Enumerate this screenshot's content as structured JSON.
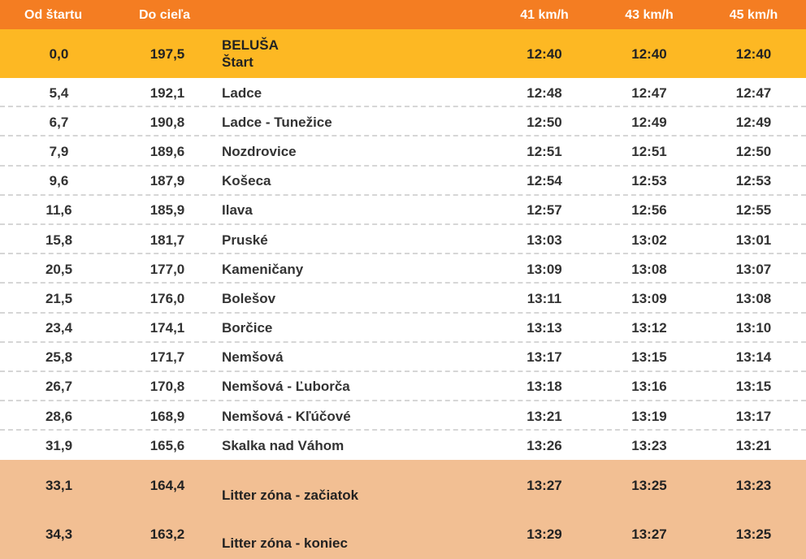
{
  "header": {
    "from_start": "Od štartu",
    "to_finish": "Do cieľa",
    "place": "",
    "speed1": "41 km/h",
    "speed2": "43 km/h",
    "speed3": "45 km/h"
  },
  "start_row": {
    "from": "0,0",
    "to": "197,5",
    "place_line1": "BELUŠA",
    "place_line2": "Štart",
    "t1": "12:40",
    "t2": "12:40",
    "t3": "12:40"
  },
  "rows": [
    {
      "from": "5,4",
      "to": "192,1",
      "place": "Ladce",
      "t1": "12:48",
      "t2": "12:47",
      "t3": "12:47"
    },
    {
      "from": "6,7",
      "to": "190,8",
      "place": "Ladce - Tunežice",
      "t1": "12:50",
      "t2": "12:49",
      "t3": "12:49"
    },
    {
      "from": "7,9",
      "to": "189,6",
      "place": "Nozdrovice",
      "t1": "12:51",
      "t2": "12:51",
      "t3": "12:50"
    },
    {
      "from": "9,6",
      "to": "187,9",
      "place": "Košeca",
      "t1": "12:54",
      "t2": "12:53",
      "t3": "12:53"
    },
    {
      "from": "11,6",
      "to": "185,9",
      "place": "Ilava",
      "t1": "12:57",
      "t2": "12:56",
      "t3": "12:55"
    },
    {
      "from": "15,8",
      "to": "181,7",
      "place": "Pruské",
      "t1": "13:03",
      "t2": "13:02",
      "t3": "13:01"
    },
    {
      "from": "20,5",
      "to": "177,0",
      "place": "Kameničany",
      "t1": "13:09",
      "t2": "13:08",
      "t3": "13:07"
    },
    {
      "from": "21,5",
      "to": "176,0",
      "place": "Bolešov",
      "t1": "13:11",
      "t2": "13:09",
      "t3": "13:08"
    },
    {
      "from": "23,4",
      "to": "174,1",
      "place": "Borčice",
      "t1": "13:13",
      "t2": "13:12",
      "t3": "13:10"
    },
    {
      "from": "25,8",
      "to": "171,7",
      "place": "Nemšová",
      "t1": "13:17",
      "t2": "13:15",
      "t3": "13:14"
    },
    {
      "from": "26,7",
      "to": "170,8",
      "place": "Nemšová - Ľuborča",
      "t1": "13:18",
      "t2": "13:16",
      "t3": "13:15"
    },
    {
      "from": "28,6",
      "to": "168,9",
      "place": "Nemšová - Kľúčové",
      "t1": "13:21",
      "t2": "13:19",
      "t3": "13:17"
    },
    {
      "from": "31,9",
      "to": "165,6",
      "place": "Skalka nad Váhom",
      "t1": "13:26",
      "t2": "13:23",
      "t3": "13:21"
    }
  ],
  "litter_rows": [
    {
      "from": "33,1",
      "to": "164,4",
      "place": "Litter zóna - začiatok",
      "t1": "13:27",
      "t2": "13:25",
      "t3": "13:23"
    },
    {
      "from": "34,3",
      "to": "163,2",
      "place": "Litter zóna - koniec",
      "t1": "13:29",
      "t2": "13:27",
      "t3": "13:25"
    }
  ],
  "colors": {
    "header_bg": "#f47d22",
    "start_bg": "#fdb823",
    "litter_bg": "#f2bf93",
    "text": "#333333"
  }
}
